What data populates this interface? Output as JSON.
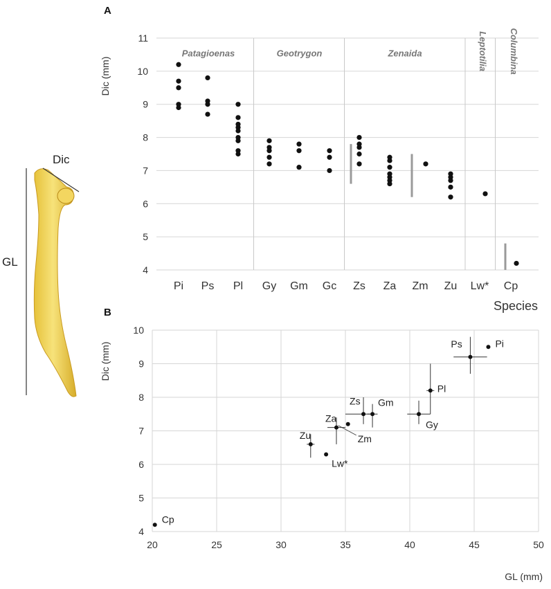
{
  "bone": {
    "label_dic": "Dic",
    "label_gl": "GL"
  },
  "panel_a": {
    "label": "A"
  },
  "panel_b": {
    "label": "B"
  },
  "chart_data": [
    {
      "type": "scatter",
      "title": "",
      "xlabel": "Species",
      "ylabel": "Dic (mm)",
      "ylim": [
        4,
        11
      ],
      "yticks": [
        4,
        5,
        6,
        7,
        8,
        9,
        10,
        11
      ],
      "grid": true,
      "categories": [
        "Pi",
        "Ps",
        "Pl",
        "Gy",
        "Gm",
        "Gc",
        "Zs",
        "Za",
        "Zm",
        "Zu",
        "Lw*",
        "Cp"
      ],
      "genera": [
        {
          "name": "Patagioenas",
          "from": 0,
          "to": 2
        },
        {
          "name": "Geotrygon",
          "from": 3,
          "to": 5
        },
        {
          "name": "Zenaida",
          "from": 6,
          "to": 9
        },
        {
          "name": "Leptotilia",
          "from": 10,
          "to": 10
        },
        {
          "name": "Columbina",
          "from": 11,
          "to": 11
        }
      ],
      "points": {
        "Pi": [
          10.2,
          9.7,
          9.5,
          9.0,
          8.9
        ],
        "Ps": [
          9.8,
          9.1,
          9.0,
          8.7
        ],
        "Pl": [
          9.0,
          8.6,
          8.4,
          8.3,
          8.2,
          8.0,
          7.9,
          7.6,
          7.5
        ],
        "Gy": [
          7.9,
          7.7,
          7.6,
          7.4,
          7.2
        ],
        "Gm": [
          7.8,
          7.6,
          7.1
        ],
        "Gc": [
          7.6,
          7.4,
          7.0
        ],
        "Zs": [
          8.0,
          7.8,
          7.7,
          7.5,
          7.2
        ],
        "Za": [
          7.4,
          7.3,
          7.1,
          6.9,
          6.8,
          6.7,
          6.6
        ],
        "Zm": [
          7.2
        ],
        "Zu": [
          6.9,
          6.8,
          6.7,
          6.5,
          6.2
        ],
        "Lw*": [
          6.3
        ],
        "Cp": [
          4.2
        ]
      },
      "ranges": [
        {
          "category": "Zs",
          "min": 6.6,
          "max": 7.8
        },
        {
          "category": "Zm",
          "min": 6.2,
          "max": 7.5
        },
        {
          "category": "Cp",
          "min": 4.0,
          "max": 4.8
        }
      ]
    },
    {
      "type": "scatter",
      "title": "",
      "xlabel": "GL (mm)",
      "ylabel": "Dic (mm)",
      "xlim": [
        20,
        50
      ],
      "ylim": [
        4,
        10
      ],
      "xticks": [
        20,
        25,
        30,
        35,
        40,
        45,
        50
      ],
      "yticks": [
        4,
        5,
        6,
        7,
        8,
        9,
        10
      ],
      "grid": true,
      "points": [
        {
          "label": "Pi",
          "x": 46.1,
          "y": 9.5
        },
        {
          "label": "Ps",
          "x": 44.7,
          "y": 9.2,
          "xerr": [
            43.4,
            46.0
          ],
          "yerr": [
            8.7,
            9.8
          ]
        },
        {
          "label": "Pl",
          "x": 41.6,
          "y": 8.2,
          "xerr": [
            41.3,
            41.9
          ],
          "yerr": [
            7.5,
            9.0
          ]
        },
        {
          "label": "Gy",
          "x": 40.7,
          "y": 7.5,
          "xerr": [
            39.8,
            41.6
          ],
          "yerr": [
            7.2,
            7.9
          ]
        },
        {
          "label": "Gm",
          "x": 37.1,
          "y": 7.5,
          "xerr": [
            36.7,
            37.5
          ],
          "yerr": [
            7.1,
            7.8
          ]
        },
        {
          "label": "Zs",
          "x": 36.4,
          "y": 7.5,
          "xerr": [
            35.0,
            37.0
          ],
          "yerr": [
            7.2,
            8.0
          ]
        },
        {
          "label": "Zm",
          "x": 35.2,
          "y": 7.2
        },
        {
          "label": "Za",
          "x": 34.3,
          "y": 7.1,
          "xerr": [
            33.6,
            35.0
          ],
          "yerr": [
            6.6,
            7.4
          ]
        },
        {
          "label": "Zu",
          "x": 32.3,
          "y": 6.6,
          "xerr": [
            32.0,
            32.6
          ],
          "yerr": [
            6.2,
            6.9
          ]
        },
        {
          "label": "Lw*",
          "x": 33.5,
          "y": 6.3
        },
        {
          "label": "Cp",
          "x": 20.2,
          "y": 4.2
        }
      ]
    }
  ]
}
